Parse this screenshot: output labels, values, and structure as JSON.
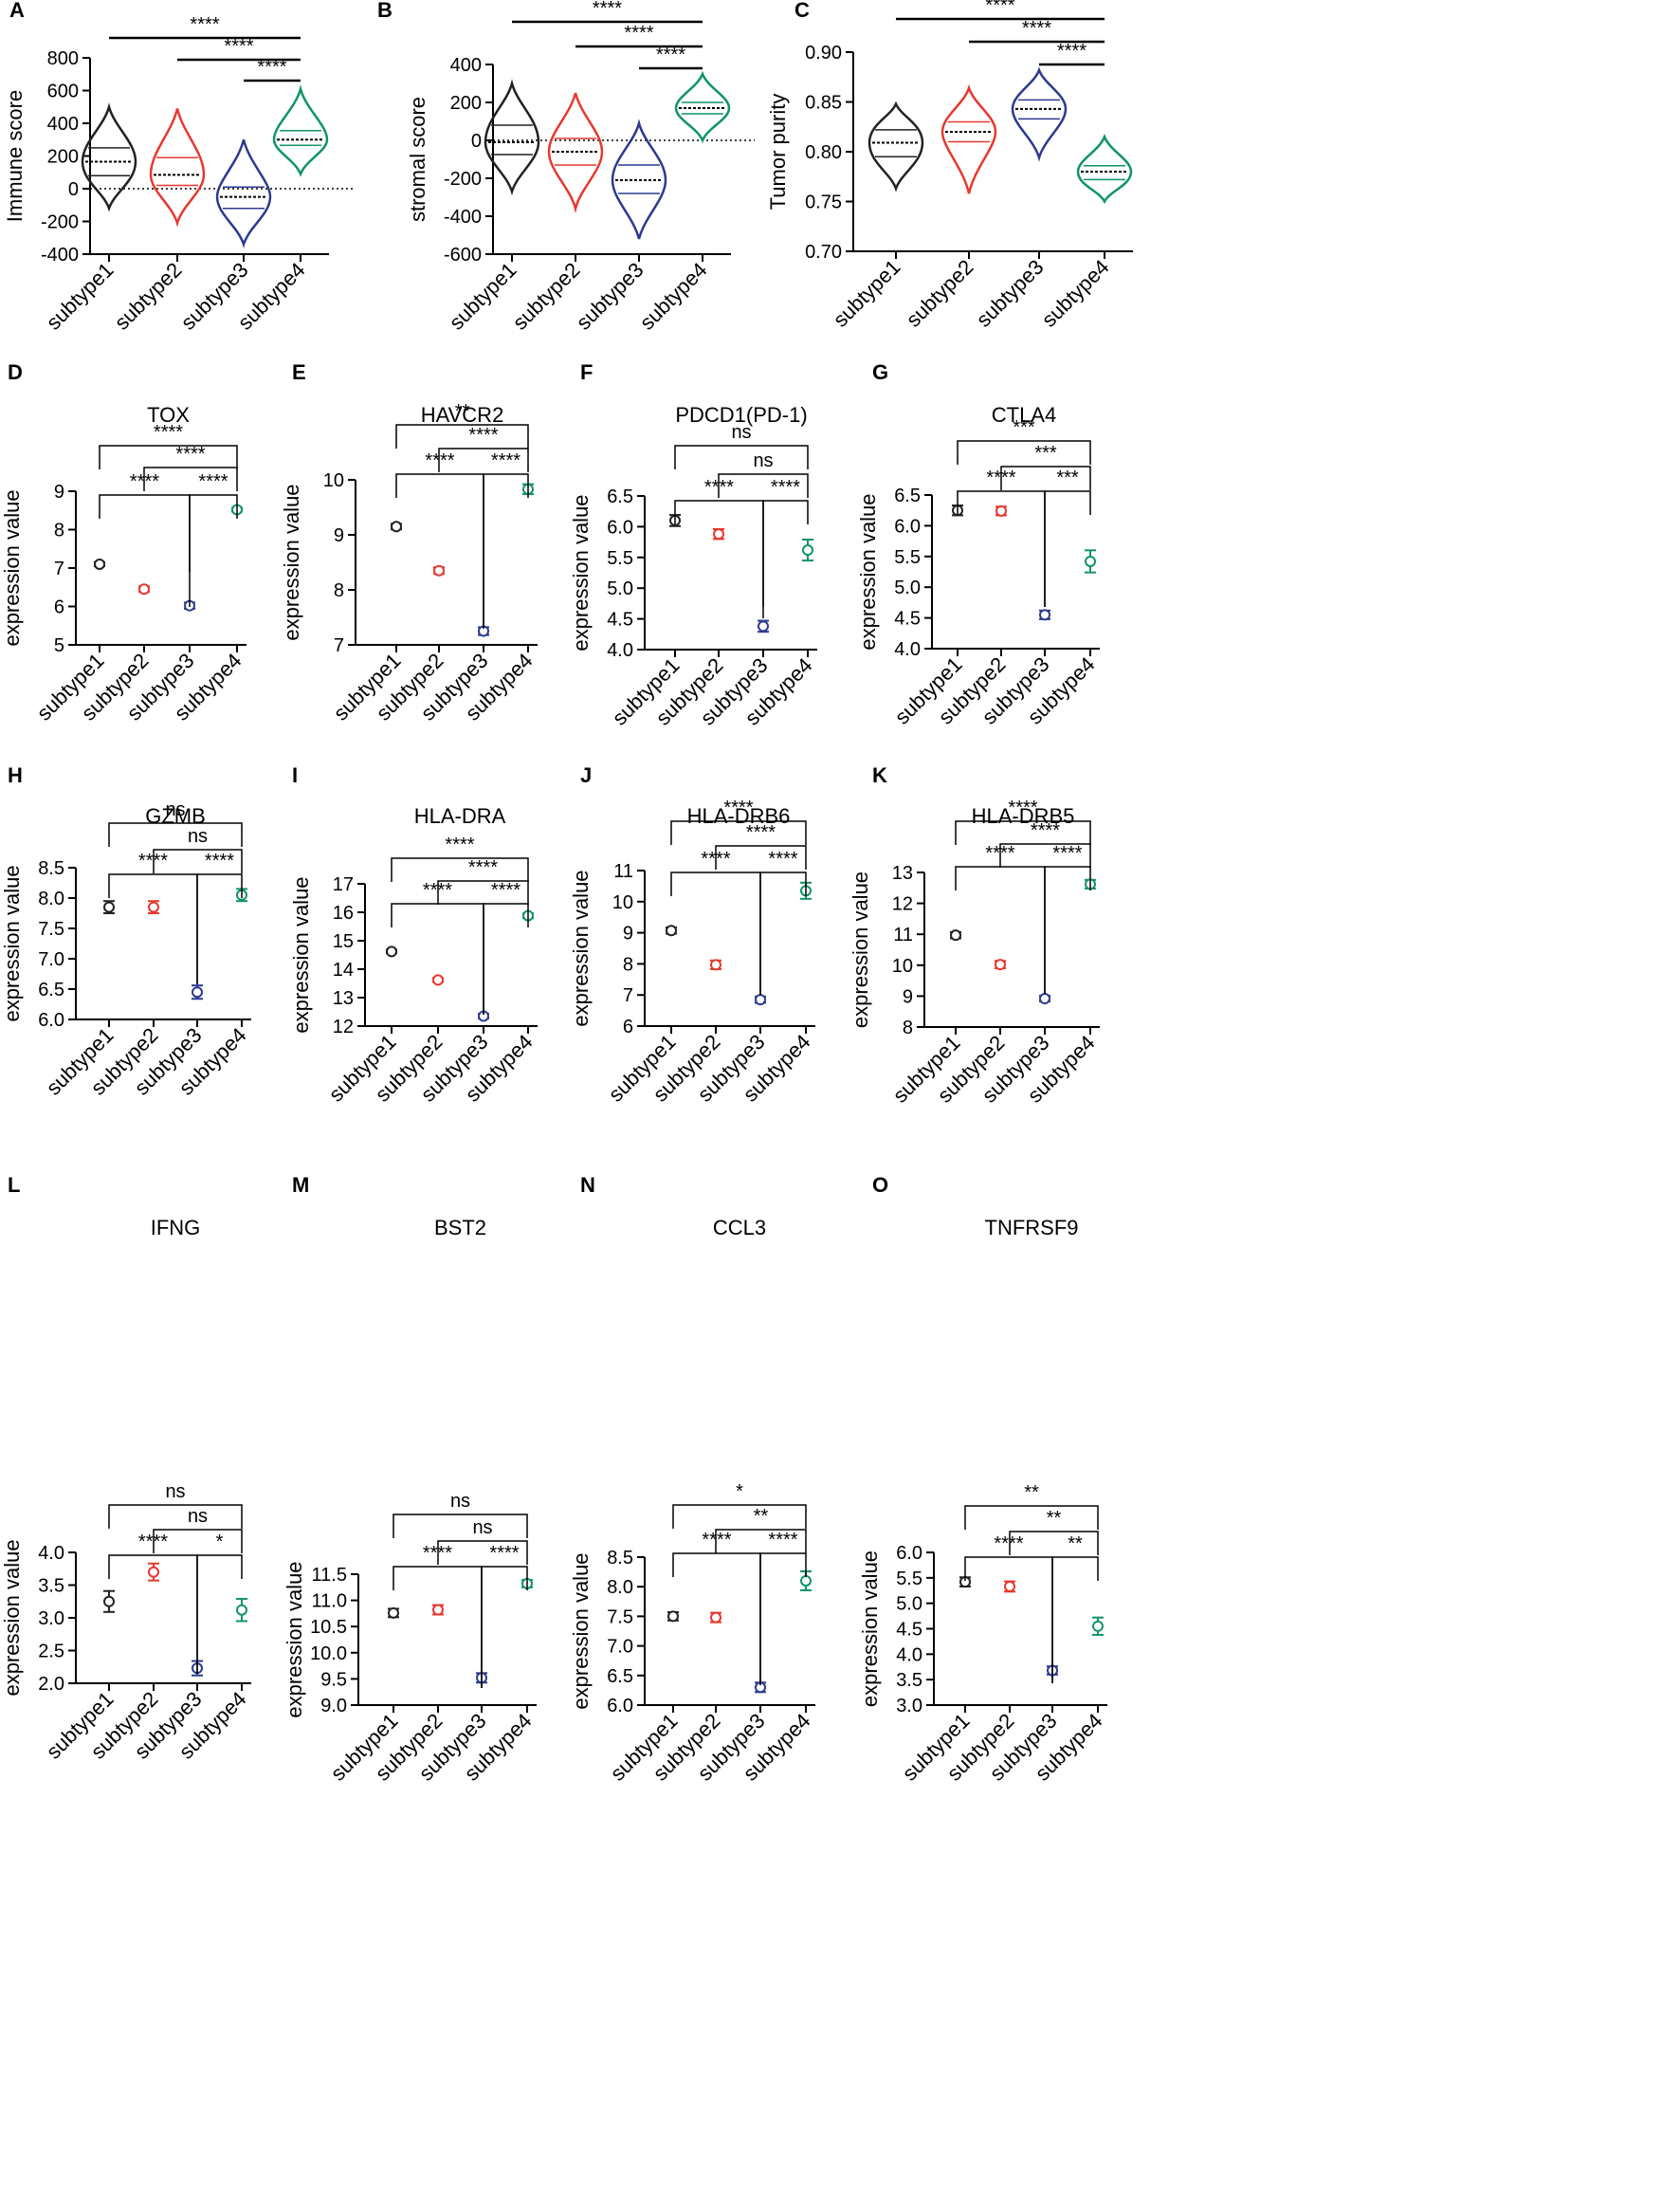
{
  "figure": {
    "colors": {
      "subtype1": "#222222",
      "subtype2": "#e8382e",
      "subtype3": "#2b3a8f",
      "subtype4": "#109467",
      "axis": "#000000"
    }
  },
  "chart_data": [
    {
      "panel": "A",
      "type": "violin",
      "title": "",
      "ylabel": "Immune score",
      "xlabel": "",
      "categories": [
        "subtype1",
        "subtype2",
        "subtype3",
        "subtype4"
      ],
      "ylim": [
        -400,
        800
      ],
      "yticks": [
        -400,
        -200,
        0,
        200,
        400,
        600,
        800
      ],
      "refline": 0,
      "violins": [
        {
          "min": -120,
          "q1": 80,
          "median": 165,
          "q3": 250,
          "max": 500
        },
        {
          "min": -210,
          "q1": 20,
          "median": 85,
          "q3": 190,
          "max": 490
        },
        {
          "min": -340,
          "q1": -120,
          "median": -50,
          "q3": 10,
          "max": 300
        },
        {
          "min": 90,
          "q1": 265,
          "median": 300,
          "q3": 355,
          "max": 610
        }
      ],
      "brackets": [
        {
          "from": 0,
          "to": 3,
          "label": "****"
        },
        {
          "from": 1,
          "to": 3,
          "label": "****"
        },
        {
          "from": 2,
          "to": 3,
          "label": "****"
        }
      ]
    },
    {
      "panel": "B",
      "type": "violin",
      "title": "",
      "ylabel": "stromal score",
      "xlabel": "",
      "categories": [
        "subtype1",
        "subtype2",
        "subtype3",
        "subtype4"
      ],
      "ylim": [
        -600,
        400
      ],
      "yticks": [
        -600,
        -400,
        -200,
        0,
        200,
        400
      ],
      "refline": 0,
      "violins": [
        {
          "min": -270,
          "q1": -75,
          "median": -10,
          "q3": 80,
          "max": 300
        },
        {
          "min": -360,
          "q1": -130,
          "median": -60,
          "q3": 10,
          "max": 250
        },
        {
          "min": -520,
          "q1": -280,
          "median": -210,
          "q3": -130,
          "max": 90
        },
        {
          "min": 0,
          "q1": 140,
          "median": 170,
          "q3": 200,
          "max": 350
        }
      ],
      "brackets": [
        {
          "from": 0,
          "to": 3,
          "label": "****"
        },
        {
          "from": 1,
          "to": 3,
          "label": "****"
        },
        {
          "from": 2,
          "to": 3,
          "label": "****"
        }
      ]
    },
    {
      "panel": "C",
      "type": "violin",
      "title": "",
      "ylabel": "Tumor purity",
      "xlabel": "",
      "categories": [
        "subtype1",
        "subtype2",
        "subtype3",
        "subtype4"
      ],
      "ylim": [
        0.7,
        0.9
      ],
      "yticks": [
        0.7,
        0.75,
        0.8,
        0.85,
        0.9
      ],
      "tickDecimals": 2,
      "violins": [
        {
          "min": 0.763,
          "q1": 0.795,
          "median": 0.809,
          "q3": 0.822,
          "max": 0.848
        },
        {
          "min": 0.758,
          "q1": 0.81,
          "median": 0.82,
          "q3": 0.83,
          "max": 0.864
        },
        {
          "min": 0.794,
          "q1": 0.833,
          "median": 0.843,
          "q3": 0.852,
          "max": 0.882
        },
        {
          "min": 0.75,
          "q1": 0.772,
          "median": 0.78,
          "q3": 0.786,
          "max": 0.815
        }
      ],
      "brackets": [
        {
          "from": 0,
          "to": 3,
          "label": "****"
        },
        {
          "from": 1,
          "to": 3,
          "label": "****"
        },
        {
          "from": 2,
          "to": 3,
          "label": "****"
        }
      ]
    },
    {
      "panel": "D",
      "type": "scatter",
      "title": "TOX",
      "ylabel": "expression value",
      "xlabel": "",
      "categories": [
        "subtype1",
        "subtype2",
        "subtype3",
        "subtype4"
      ],
      "ylim": [
        5,
        9
      ],
      "yticks": [
        5,
        6,
        7,
        8,
        9
      ],
      "tickDecimals": 0,
      "points": [
        {
          "mean": 7.1,
          "err": 0.05
        },
        {
          "mean": 6.45,
          "err": 0.07
        },
        {
          "mean": 6.02,
          "err": 0.08
        },
        {
          "mean": 8.52,
          "err": 0.05
        }
      ],
      "brackets": [
        {
          "from": 0,
          "to": 3,
          "label": "****"
        },
        {
          "from": 1,
          "to": 3,
          "label": "****"
        },
        {
          "from": 0,
          "to": 2,
          "label": "****"
        },
        {
          "from": 2,
          "to": 3,
          "label": "****"
        }
      ]
    },
    {
      "panel": "E",
      "type": "scatter",
      "title": "HAVCR2",
      "ylabel": "expression value",
      "xlabel": "",
      "categories": [
        "subtype1",
        "subtype2",
        "subtype3",
        "subtype4"
      ],
      "ylim": [
        7,
        10
      ],
      "yticks": [
        7,
        8,
        9,
        10
      ],
      "tickDecimals": 0,
      "points": [
        {
          "mean": 9.15,
          "err": 0.05
        },
        {
          "mean": 8.35,
          "err": 0.06
        },
        {
          "mean": 7.25,
          "err": 0.07
        },
        {
          "mean": 9.83,
          "err": 0.09
        }
      ],
      "brackets": [
        {
          "from": 0,
          "to": 3,
          "label": "**"
        },
        {
          "from": 1,
          "to": 3,
          "label": "****"
        },
        {
          "from": 0,
          "to": 2,
          "label": "****"
        },
        {
          "from": 2,
          "to": 3,
          "label": "****"
        }
      ]
    },
    {
      "panel": "F",
      "type": "scatter",
      "title": "PDCD1(PD-1)",
      "ylabel": "expression value",
      "xlabel": "",
      "categories": [
        "subtype1",
        "subtype2",
        "subtype3",
        "subtype4"
      ],
      "ylim": [
        4.0,
        6.5
      ],
      "yticks": [
        4.0,
        4.5,
        5.0,
        5.5,
        6.0,
        6.5
      ],
      "tickDecimals": 1,
      "points": [
        {
          "mean": 6.1,
          "err": 0.09
        },
        {
          "mean": 5.88,
          "err": 0.08
        },
        {
          "mean": 4.38,
          "err": 0.09
        },
        {
          "mean": 5.62,
          "err": 0.17
        }
      ],
      "brackets": [
        {
          "from": 0,
          "to": 3,
          "label": "ns"
        },
        {
          "from": 1,
          "to": 3,
          "label": "ns"
        },
        {
          "from": 0,
          "to": 2,
          "label": "****"
        },
        {
          "from": 2,
          "to": 3,
          "label": "****"
        }
      ]
    },
    {
      "panel": "G",
      "type": "scatter",
      "title": "CTLA4",
      "ylabel": "expression value",
      "xlabel": "",
      "categories": [
        "subtype1",
        "subtype2",
        "subtype3",
        "subtype4"
      ],
      "ylim": [
        4.0,
        6.5
      ],
      "yticks": [
        4.0,
        4.5,
        5.0,
        5.5,
        6.0,
        6.5
      ],
      "tickDecimals": 1,
      "points": [
        {
          "mean": 6.25,
          "err": 0.08
        },
        {
          "mean": 6.24,
          "err": 0.07
        },
        {
          "mean": 4.55,
          "err": 0.07
        },
        {
          "mean": 5.42,
          "err": 0.18
        }
      ],
      "brackets": [
        {
          "from": 0,
          "to": 3,
          "label": "***"
        },
        {
          "from": 1,
          "to": 3,
          "label": "***"
        },
        {
          "from": 0,
          "to": 2,
          "label": "****"
        },
        {
          "from": 2,
          "to": 3,
          "label": "***"
        }
      ]
    },
    {
      "panel": "H",
      "type": "scatter",
      "title": "GZMB",
      "ylabel": "expression value",
      "xlabel": "",
      "categories": [
        "subtype1",
        "subtype2",
        "subtype3",
        "subtype4"
      ],
      "ylim": [
        6.0,
        8.5
      ],
      "yticks": [
        6.0,
        6.5,
        7.0,
        7.5,
        8.0,
        8.5
      ],
      "tickDecimals": 1,
      "points": [
        {
          "mean": 7.85,
          "err": 0.1
        },
        {
          "mean": 7.85,
          "err": 0.1
        },
        {
          "mean": 6.45,
          "err": 0.11
        },
        {
          "mean": 8.05,
          "err": 0.1
        }
      ],
      "brackets": [
        {
          "from": 0,
          "to": 3,
          "label": "ns"
        },
        {
          "from": 1,
          "to": 3,
          "label": "ns"
        },
        {
          "from": 0,
          "to": 2,
          "label": "****"
        },
        {
          "from": 2,
          "to": 3,
          "label": "****"
        }
      ]
    },
    {
      "panel": "I",
      "type": "scatter",
      "title": "HLA-DRA",
      "ylabel": "expression value",
      "xlabel": "",
      "categories": [
        "subtype1",
        "subtype2",
        "subtype3",
        "subtype4"
      ],
      "ylim": [
        12,
        17
      ],
      "yticks": [
        12,
        13,
        14,
        15,
        16,
        17
      ],
      "tickDecimals": 0,
      "points": [
        {
          "mean": 14.62,
          "err": 0.06
        },
        {
          "mean": 13.62,
          "err": 0.07
        },
        {
          "mean": 12.35,
          "err": 0.08
        },
        {
          "mean": 15.88,
          "err": 0.08
        }
      ],
      "brackets": [
        {
          "from": 0,
          "to": 3,
          "label": "****"
        },
        {
          "from": 1,
          "to": 3,
          "label": "****"
        },
        {
          "from": 0,
          "to": 2,
          "label": "****"
        },
        {
          "from": 2,
          "to": 3,
          "label": "****"
        }
      ]
    },
    {
      "panel": "J",
      "type": "scatter",
      "title": "HLA-DRB6",
      "ylabel": "expression value",
      "xlabel": "",
      "categories": [
        "subtype1",
        "subtype2",
        "subtype3",
        "subtype4"
      ],
      "ylim": [
        6,
        11
      ],
      "yticks": [
        6,
        7,
        8,
        9,
        10,
        11
      ],
      "tickDecimals": 0,
      "points": [
        {
          "mean": 9.07,
          "err": 0.1
        },
        {
          "mean": 7.97,
          "err": 0.14
        },
        {
          "mean": 6.85,
          "err": 0.1
        },
        {
          "mean": 10.35,
          "err": 0.26
        }
      ],
      "brackets": [
        {
          "from": 0,
          "to": 3,
          "label": "****"
        },
        {
          "from": 1,
          "to": 3,
          "label": "****"
        },
        {
          "from": 0,
          "to": 2,
          "label": "****"
        },
        {
          "from": 2,
          "to": 3,
          "label": "****"
        }
      ]
    },
    {
      "panel": "K",
      "type": "scatter",
      "title": "HLA-DRB5",
      "ylabel": "expression value",
      "xlabel": "",
      "categories": [
        "subtype1",
        "subtype2",
        "subtype3",
        "subtype4"
      ],
      "ylim": [
        8,
        13
      ],
      "yticks": [
        8,
        9,
        10,
        11,
        12,
        13
      ],
      "tickDecimals": 0,
      "points": [
        {
          "mean": 10.97,
          "err": 0.1
        },
        {
          "mean": 10.02,
          "err": 0.12
        },
        {
          "mean": 8.92,
          "err": 0.09
        },
        {
          "mean": 12.62,
          "err": 0.14
        }
      ],
      "brackets": [
        {
          "from": 0,
          "to": 3,
          "label": "****"
        },
        {
          "from": 1,
          "to": 3,
          "label": "****"
        },
        {
          "from": 0,
          "to": 2,
          "label": "****"
        },
        {
          "from": 2,
          "to": 3,
          "label": "****"
        }
      ]
    },
    {
      "panel": "L",
      "type": "scatter",
      "title": "IFNG",
      "ylabel": "expression value",
      "xlabel": "",
      "categories": [
        "subtype1",
        "subtype2",
        "subtype3",
        "subtype4"
      ],
      "ylim": [
        2.0,
        4.0
      ],
      "yticks": [
        2.0,
        2.5,
        3.0,
        3.5,
        4.0
      ],
      "tickDecimals": 1,
      "points": [
        {
          "mean": 3.25,
          "err": 0.16
        },
        {
          "mean": 3.7,
          "err": 0.13
        },
        {
          "mean": 2.23,
          "err": 0.11
        },
        {
          "mean": 3.12,
          "err": 0.17
        }
      ],
      "brackets": [
        {
          "from": 0,
          "to": 3,
          "label": "ns"
        },
        {
          "from": 1,
          "to": 3,
          "label": "ns"
        },
        {
          "from": 0,
          "to": 2,
          "label": "****"
        },
        {
          "from": 2,
          "to": 3,
          "label": "*"
        }
      ]
    },
    {
      "panel": "M",
      "type": "scatter",
      "title": "BST2",
      "ylabel": "expression value",
      "xlabel": "",
      "categories": [
        "subtype1",
        "subtype2",
        "subtype3",
        "subtype4"
      ],
      "ylim": [
        9.0,
        11.5
      ],
      "yticks": [
        9.0,
        9.5,
        10.0,
        10.5,
        11.0,
        11.5
      ],
      "tickDecimals": 1,
      "points": [
        {
          "mean": 10.76,
          "err": 0.08
        },
        {
          "mean": 10.82,
          "err": 0.09
        },
        {
          "mean": 9.52,
          "err": 0.09
        },
        {
          "mean": 11.32,
          "err": 0.07
        }
      ],
      "brackets": [
        {
          "from": 0,
          "to": 3,
          "label": "ns"
        },
        {
          "from": 1,
          "to": 3,
          "label": "ns"
        },
        {
          "from": 0,
          "to": 2,
          "label": "****"
        },
        {
          "from": 2,
          "to": 3,
          "label": "****"
        }
      ]
    },
    {
      "panel": "N",
      "type": "scatter",
      "title": "CCL3",
      "ylabel": "expression value",
      "xlabel": "",
      "categories": [
        "subtype1",
        "subtype2",
        "subtype3",
        "subtype4"
      ],
      "ylim": [
        6.0,
        8.5
      ],
      "yticks": [
        6.0,
        6.5,
        7.0,
        7.5,
        8.0,
        8.5
      ],
      "tickDecimals": 1,
      "points": [
        {
          "mean": 7.5,
          "err": 0.07
        },
        {
          "mean": 7.48,
          "err": 0.08
        },
        {
          "mean": 6.3,
          "err": 0.08
        },
        {
          "mean": 8.1,
          "err": 0.16
        }
      ],
      "brackets": [
        {
          "from": 0,
          "to": 3,
          "label": "*"
        },
        {
          "from": 1,
          "to": 3,
          "label": "**"
        },
        {
          "from": 0,
          "to": 2,
          "label": "****"
        },
        {
          "from": 2,
          "to": 3,
          "label": "****"
        }
      ]
    },
    {
      "panel": "O",
      "type": "scatter",
      "title": "TNFRSF9",
      "ylabel": "expression value",
      "xlabel": "",
      "categories": [
        "subtype1",
        "subtype2",
        "subtype3",
        "subtype4"
      ],
      "ylim": [
        3.0,
        6.0
      ],
      "yticks": [
        3.0,
        3.5,
        4.0,
        4.5,
        5.0,
        5.5,
        6.0
      ],
      "tickDecimals": 1,
      "points": [
        {
          "mean": 5.42,
          "err": 0.09
        },
        {
          "mean": 5.33,
          "err": 0.1
        },
        {
          "mean": 3.68,
          "err": 0.08
        },
        {
          "mean": 4.55,
          "err": 0.17
        }
      ],
      "brackets": [
        {
          "from": 0,
          "to": 3,
          "label": "**"
        },
        {
          "from": 1,
          "to": 3,
          "label": "**"
        },
        {
          "from": 0,
          "to": 2,
          "label": "****"
        },
        {
          "from": 2,
          "to": 3,
          "label": "**"
        }
      ]
    }
  ]
}
